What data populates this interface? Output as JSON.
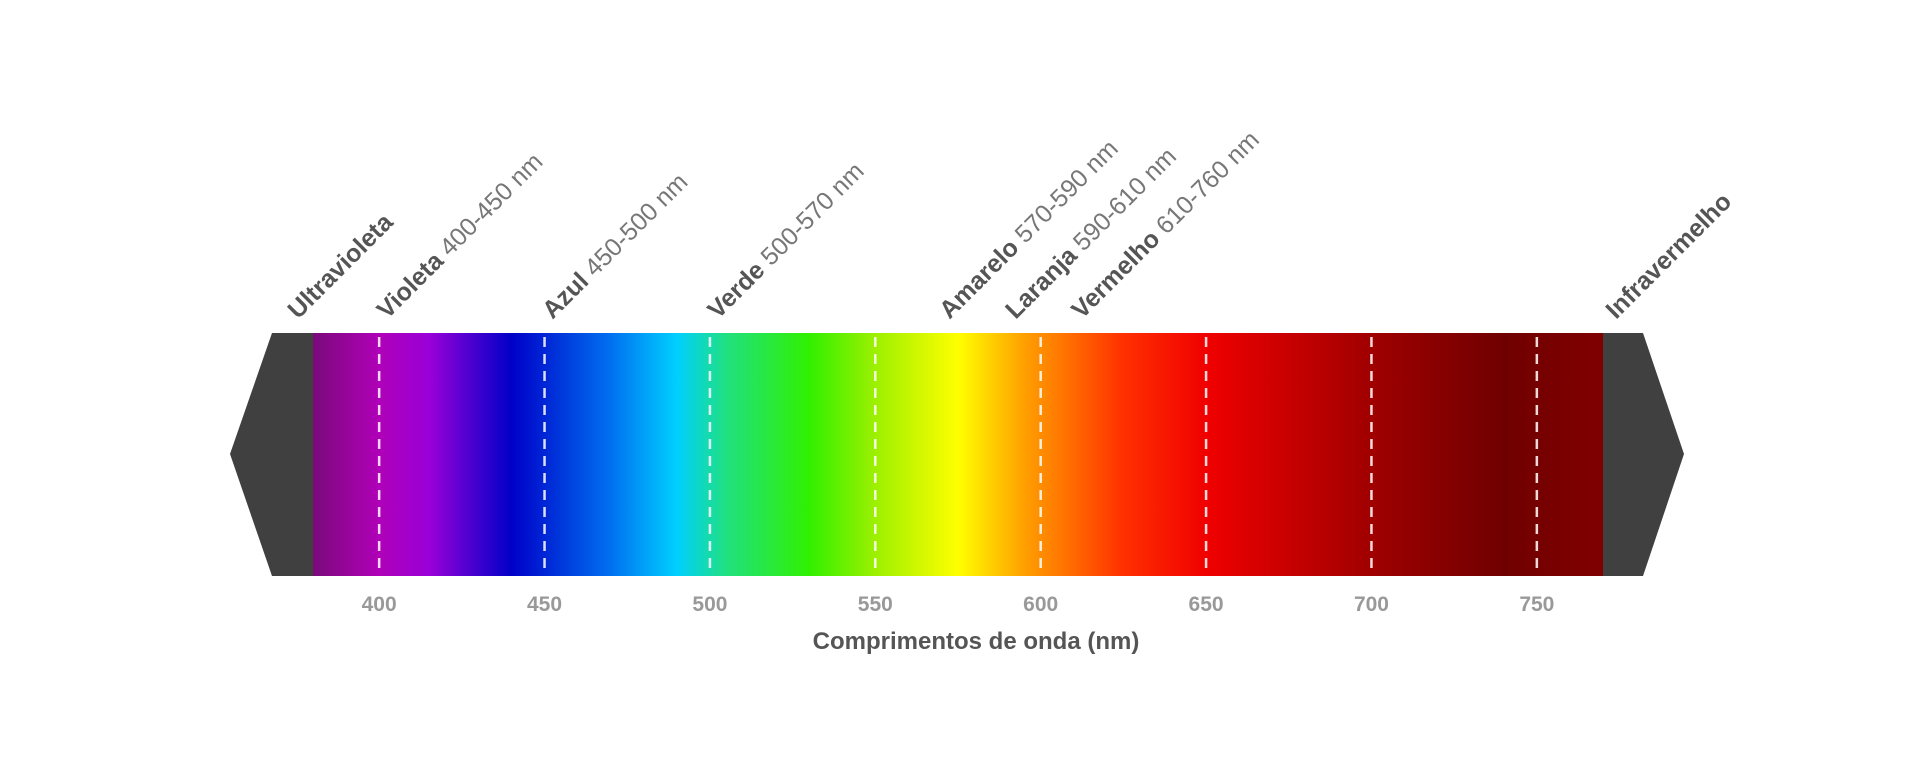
{
  "diagram": {
    "axis_title": "Comprimentos de onda (nm)",
    "ticks": [
      400,
      450,
      500,
      550,
      600,
      650,
      700,
      750
    ],
    "domain_nm": [
      380,
      770
    ],
    "end_cap_color": "#404040",
    "bands": [
      {
        "id": "ultraviolet",
        "name": "Ultravioleta",
        "range": "",
        "position_nm": 380
      },
      {
        "id": "violet",
        "name": "Violeta",
        "range": " 400-450 nm",
        "position_nm": 400
      },
      {
        "id": "blue",
        "name": "Azul",
        "range": " 450-500 nm",
        "position_nm": 450
      },
      {
        "id": "green",
        "name": "Verde",
        "range": " 500-570 nm",
        "position_nm": 500
      },
      {
        "id": "yellow",
        "name": "Amarelo",
        "range": " 570-590 nm",
        "position_nm": 570
      },
      {
        "id": "orange",
        "name": "Laranja",
        "range": " 590-610 nm",
        "position_nm": 590
      },
      {
        "id": "red",
        "name": "Vermelho",
        "range": " 610-760 nm",
        "position_nm": 610
      },
      {
        "id": "infrared",
        "name": "Infravermelho",
        "range": "",
        "position_nm": 770
      }
    ],
    "gradient_stops": [
      {
        "nm": 380,
        "color": "#7a0a7a"
      },
      {
        "nm": 400,
        "color": "#b000b8"
      },
      {
        "nm": 415,
        "color": "#9a00d8"
      },
      {
        "nm": 440,
        "color": "#0000c8"
      },
      {
        "nm": 470,
        "color": "#0070f0"
      },
      {
        "nm": 490,
        "color": "#00d0ff"
      },
      {
        "nm": 505,
        "color": "#20e080"
      },
      {
        "nm": 530,
        "color": "#30f000"
      },
      {
        "nm": 550,
        "color": "#9cf000"
      },
      {
        "nm": 575,
        "color": "#ffff00"
      },
      {
        "nm": 595,
        "color": "#ffa000"
      },
      {
        "nm": 625,
        "color": "#ff3000"
      },
      {
        "nm": 650,
        "color": "#f00000"
      },
      {
        "nm": 700,
        "color": "#a00000"
      },
      {
        "nm": 740,
        "color": "#700000"
      },
      {
        "nm": 770,
        "color": "#800000"
      }
    ]
  }
}
